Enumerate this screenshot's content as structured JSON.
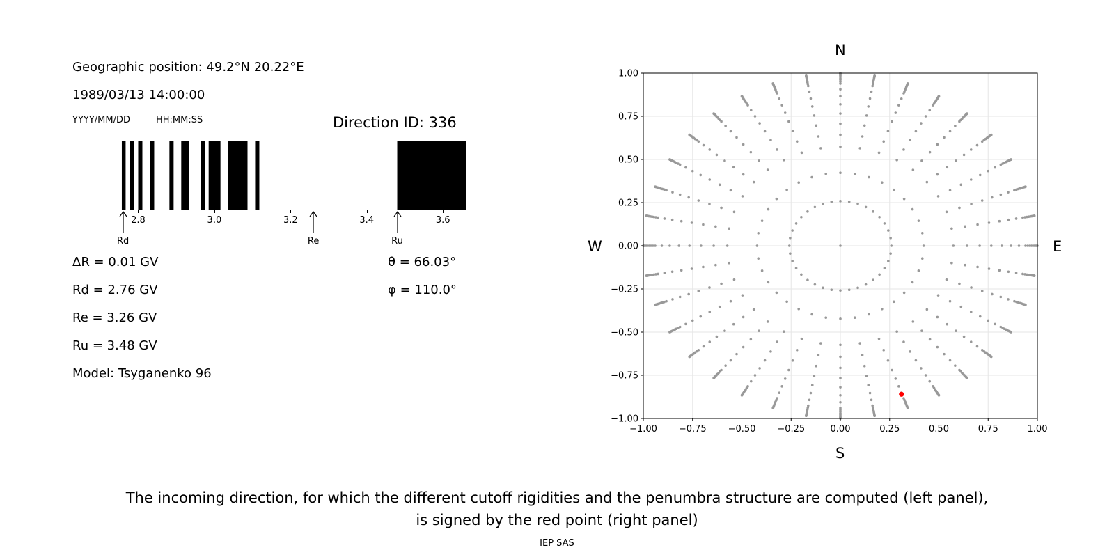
{
  "header": {
    "geo_position": "Geographic position: 49.2°N 20.22°E",
    "datetime": "1989/03/13 14:00:00",
    "date_format": "YYYY/MM/DD",
    "time_format": "HH:MM:SS",
    "direction_id": "Direction ID: 336"
  },
  "penumbra": {
    "xrange": [
      2.62,
      3.66
    ],
    "ticks": [
      2.8,
      3.0,
      3.2,
      3.4,
      3.6
    ],
    "tick_labels": [
      "2.8",
      "3.0",
      "3.2",
      "3.4",
      "3.6"
    ],
    "black_bands": [
      [
        2.757,
        2.767
      ],
      [
        2.778,
        2.789
      ],
      [
        2.8,
        2.811
      ],
      [
        2.831,
        2.842
      ],
      [
        2.882,
        2.893
      ],
      [
        2.913,
        2.934
      ],
      [
        2.964,
        2.975
      ],
      [
        2.985,
        3.016
      ],
      [
        3.036,
        3.087
      ],
      [
        3.107,
        3.118
      ],
      [
        3.48,
        3.66
      ]
    ],
    "markers": [
      {
        "label": "Rd",
        "value": 2.76
      },
      {
        "label": "Re",
        "value": 3.26
      },
      {
        "label": "Ru",
        "value": 3.48
      }
    ]
  },
  "params": {
    "delta_r": "ΔR = 0.01 GV",
    "rd": "Rd = 2.76 GV",
    "re": "Re = 3.26 GV",
    "ru": "Ru = 3.48 GV",
    "model": "Model: Tsyganenko 96",
    "theta": "θ = 66.03°",
    "phi": "φ = 110.0°"
  },
  "chart_data": {
    "type": "scatter",
    "xlim": [
      -1.0,
      1.0
    ],
    "ylim": [
      -1.0,
      1.0
    ],
    "x_ticks": [
      -1.0,
      -0.75,
      -0.5,
      -0.25,
      0.0,
      0.25,
      0.5,
      0.75,
      1.0
    ],
    "x_tick_labels": [
      "−1.00",
      "−0.75",
      "−0.50",
      "−0.25",
      "0.00",
      "0.25",
      "0.50",
      "0.75",
      "1.00"
    ],
    "y_ticks": [
      1.0,
      0.75,
      0.5,
      0.25,
      0.0,
      -0.25,
      -0.5,
      -0.75,
      -1.0
    ],
    "y_tick_labels": [
      "1.00",
      "0.75",
      "0.50",
      "0.25",
      "0.00",
      "−0.25",
      "−0.50",
      "−0.75",
      "−1.00"
    ],
    "grid": true,
    "directions_grid": {
      "zenith_angles_deg": [
        15,
        25,
        35,
        40,
        45,
        50,
        55,
        60,
        65,
        70,
        72,
        74,
        76,
        78,
        80,
        82,
        84,
        86,
        88,
        90
      ],
      "azimuth_step_deg": 10,
      "color": "#999999"
    },
    "highlight": {
      "theta_deg": 66.03,
      "phi_deg": 110.0,
      "x": 0.31,
      "y": -0.86,
      "color": "#ff0000"
    },
    "compass": {
      "north": "N",
      "south": "S",
      "west": "W",
      "east": "E"
    }
  },
  "caption": {
    "line1": "The incoming direction, for which the different cutoff rigidities and the penumbra structure are computed (left panel),",
    "line2": "is signed by the red point (right panel)",
    "credit": "IEP SAS"
  }
}
